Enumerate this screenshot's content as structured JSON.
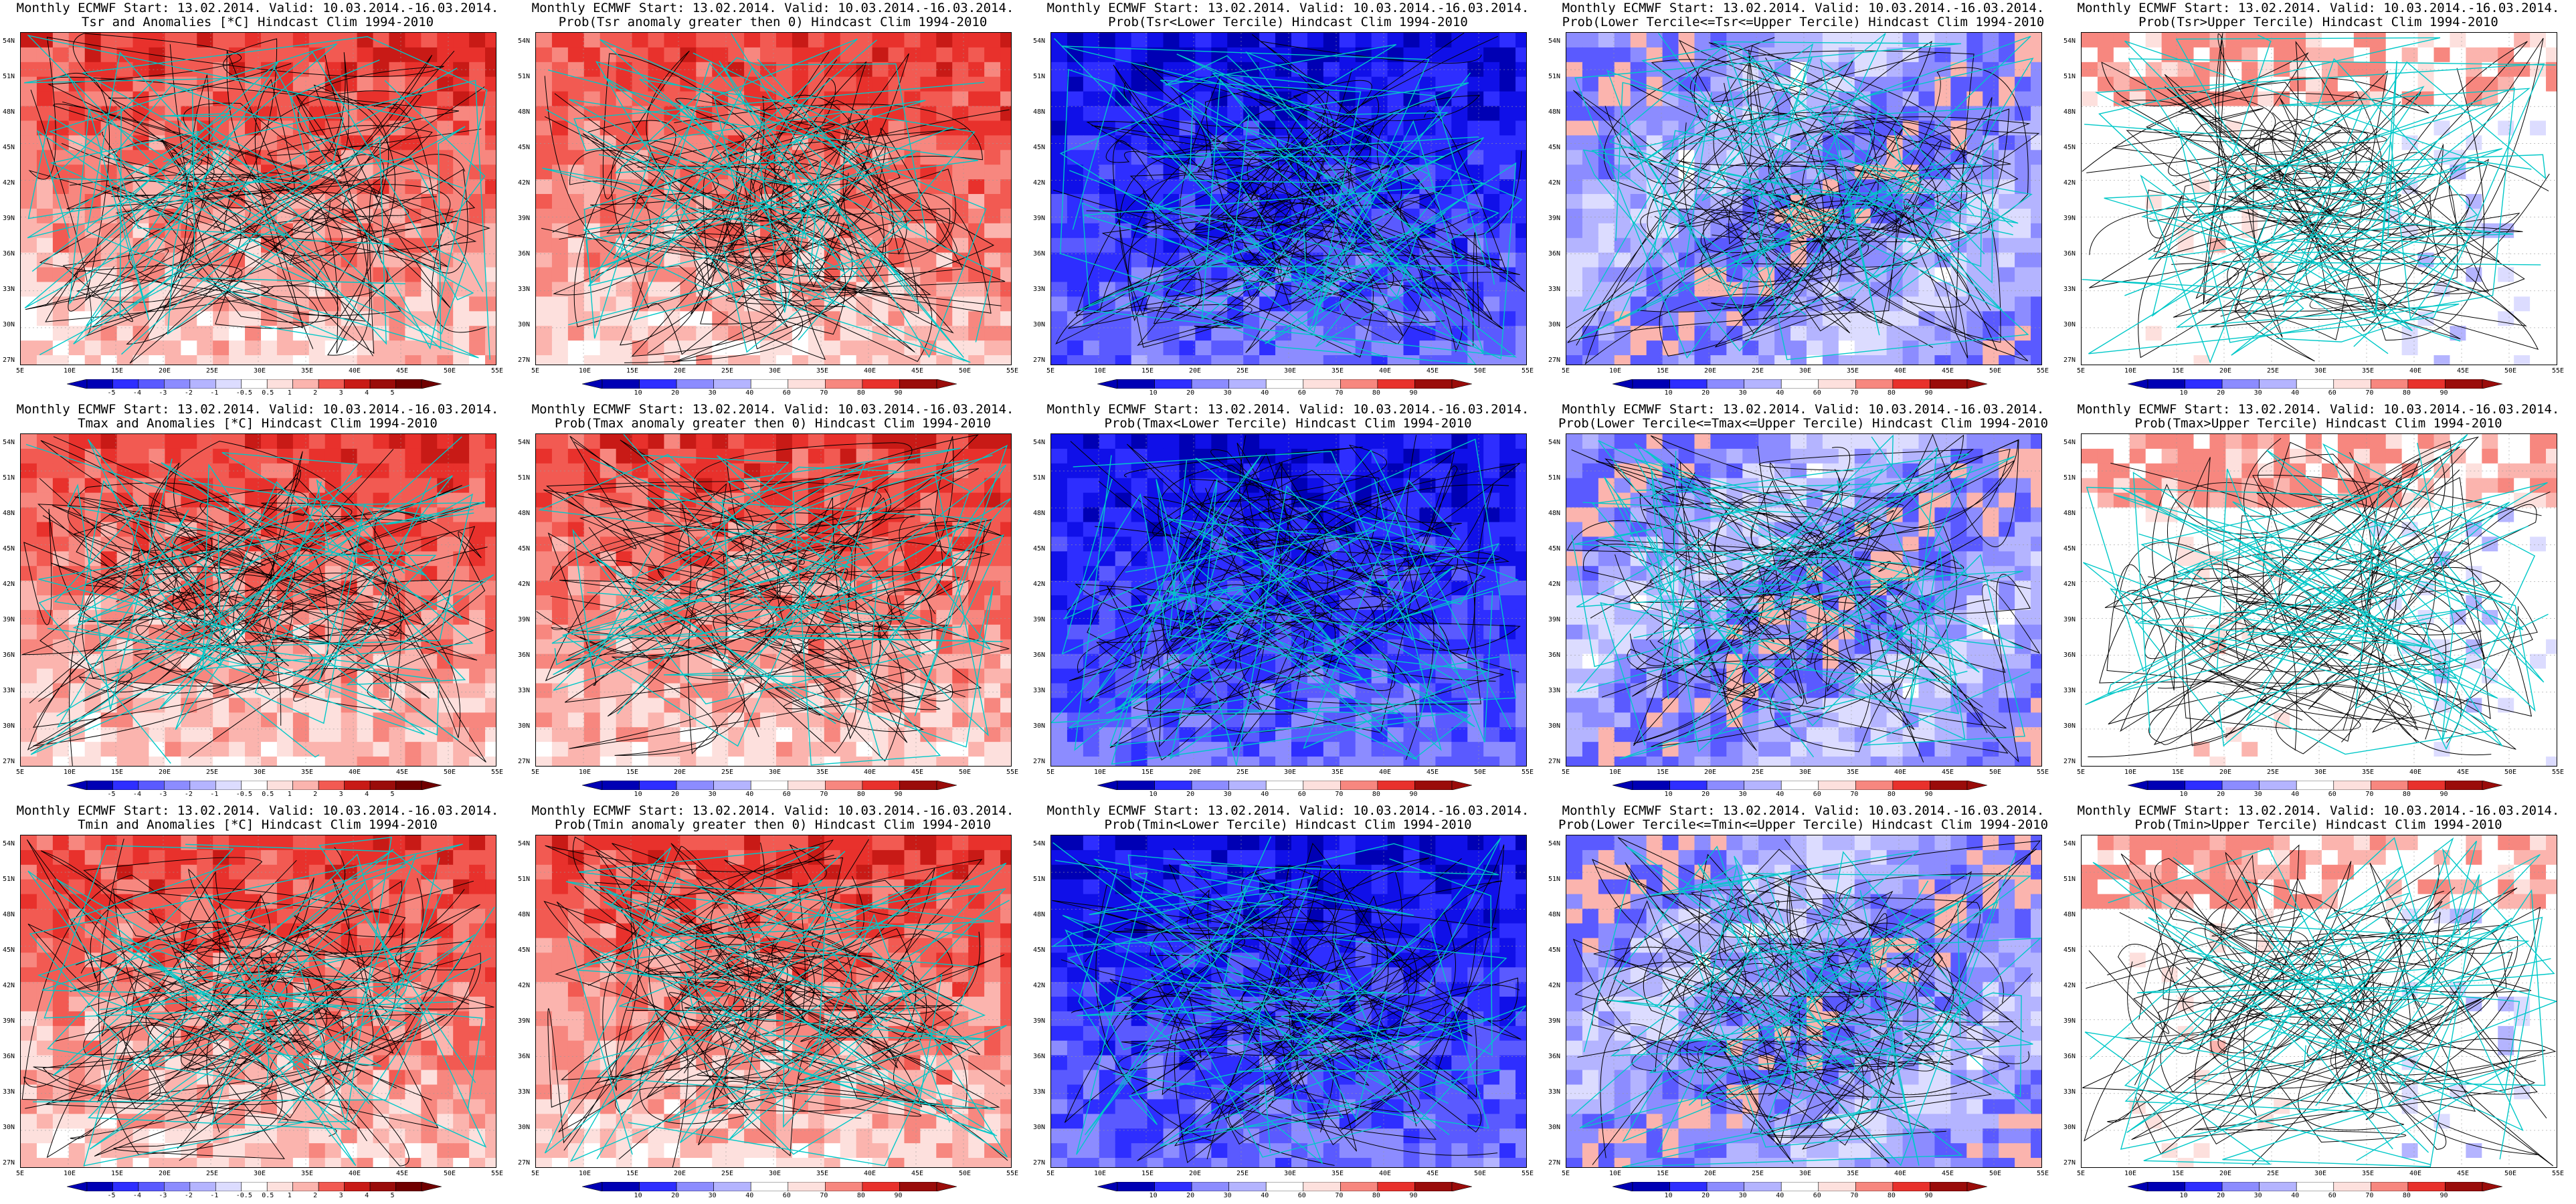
{
  "colors": {
    "red_scale": [
      "#ffffff",
      "#fde0dd",
      "#fbb4ae",
      "#f7877f",
      "#f25a52",
      "#e8312c",
      "#c81a16",
      "#9a0c0a"
    ],
    "blue_scale": [
      "#ffffff",
      "#dcdcff",
      "#b4b4ff",
      "#8c8cff",
      "#5a5aff",
      "#2e2eff",
      "#1010e8",
      "#0000b4"
    ],
    "contour": "#000000",
    "coast": "#00c8c8",
    "grid": "#9a9a9a"
  },
  "lat_labels": [
    "54N",
    "51N",
    "48N",
    "45N",
    "42N",
    "39N",
    "36N",
    "33N",
    "30N",
    "27N"
  ],
  "lon_labels": [
    "5E",
    "10E",
    "15E",
    "20E",
    "25E",
    "30E",
    "35E",
    "40E",
    "45E",
    "50E",
    "55E"
  ],
  "colorbars": {
    "anomaly": [
      "-5",
      "-4",
      "-3",
      "-2",
      "-1",
      "-0.5",
      "0.5",
      "1",
      "2",
      "3",
      "4",
      "5"
    ],
    "prob": [
      "10",
      "20",
      "30",
      "40",
      "60",
      "70",
      "80",
      "90"
    ]
  },
  "panels": [
    {
      "line1": "Monthly ECMWF Start: 13.02.2014. Valid: 10.03.2014.-16.03.2014.",
      "line2": "Tsr and Anomalies [*C] Hindcast Clim 1994-2010",
      "scheme": "red",
      "cbar": "anomaly"
    },
    {
      "line1": "Monthly ECMWF Start: 13.02.2014. Valid: 10.03.2014.-16.03.2014.",
      "line2": "Prob(Tsr anomaly greater then 0) Hindcast Clim 1994-2010",
      "scheme": "red",
      "cbar": "prob"
    },
    {
      "line1": "Monthly ECMWF Start: 13.02.2014. Valid: 10.03.2014.-16.03.2014.",
      "line2": "Prob(Tsr<Lower Tercile) Hindcast Clim 1994-2010",
      "scheme": "blue",
      "cbar": "prob"
    },
    {
      "line1": "Monthly ECMWF Start: 13.02.2014. Valid: 10.03.2014.-16.03.2014.",
      "line2": "Prob(Lower Tercile<=Tsr<=Upper Tercile) Hindcast Clim 1994-2010",
      "scheme": "mixed",
      "cbar": "prob"
    },
    {
      "line1": "Monthly ECMWF Start: 13.02.2014. Valid: 10.03.2014.-16.03.2014.",
      "line2": "Prob(Tsr>Upper Tercile) Hindcast Clim 1994-2010",
      "scheme": "pale",
      "cbar": "prob"
    },
    {
      "line1": "Monthly ECMWF Start: 13.02.2014. Valid: 10.03.2014.-16.03.2014.",
      "line2": "Tmax and Anomalies [*C] Hindcast Clim 1994-2010",
      "scheme": "red",
      "cbar": "anomaly"
    },
    {
      "line1": "Monthly ECMWF Start: 13.02.2014. Valid: 10.03.2014.-16.03.2014.",
      "line2": "Prob(Tmax anomaly greater then 0) Hindcast Clim 1994-2010",
      "scheme": "red",
      "cbar": "prob"
    },
    {
      "line1": "Monthly ECMWF Start: 13.02.2014. Valid: 10.03.2014.-16.03.2014.",
      "line2": "Prob(Tmax<Lower Tercile) Hindcast Clim 1994-2010",
      "scheme": "blue",
      "cbar": "prob"
    },
    {
      "line1": "Monthly ECMWF Start: 13.02.2014. Valid: 10.03.2014.-16.03.2014.",
      "line2": "Prob(Lower Tercile<=Tmax<=Upper Tercile) Hindcast Clim 1994-2010",
      "scheme": "mixed",
      "cbar": "prob"
    },
    {
      "line1": "Monthly ECMWF Start: 13.02.2014. Valid: 10.03.2014.-16.03.2014.",
      "line2": "Prob(Tmax>Upper Tercile) Hindcast Clim 1994-2010",
      "scheme": "pale",
      "cbar": "prob"
    },
    {
      "line1": "Monthly ECMWF Start: 13.02.2014. Valid: 10.03.2014.-16.03.2014.",
      "line2": "Tmin and Anomalies [*C] Hindcast Clim 1994-2010",
      "scheme": "red",
      "cbar": "anomaly"
    },
    {
      "line1": "Monthly ECMWF Start: 13.02.2014. Valid: 10.03.2014.-16.03.2014.",
      "line2": "Prob(Tmin anomaly greater then 0) Hindcast Clim 1994-2010",
      "scheme": "red",
      "cbar": "prob"
    },
    {
      "line1": "Monthly ECMWF Start: 13.02.2014. Valid: 10.03.2014.-16.03.2014.",
      "line2": "Prob(Tmin<Lower Tercile) Hindcast Clim 1994-2010",
      "scheme": "blue",
      "cbar": "prob"
    },
    {
      "line1": "Monthly ECMWF Start: 13.02.2014. Valid: 10.03.2014.-16.03.2014.",
      "line2": "Prob(Lower Tercile<=Tmin<=Upper Tercile) Hindcast Clim 1994-2010",
      "scheme": "mixed",
      "cbar": "prob"
    },
    {
      "line1": "Monthly ECMWF Start: 13.02.2014. Valid: 10.03.2014.-16.03.2014.",
      "line2": "Prob(Tmin>Upper Tercile) Hindcast Clim 1994-2010",
      "scheme": "pale",
      "cbar": "prob"
    }
  ]
}
